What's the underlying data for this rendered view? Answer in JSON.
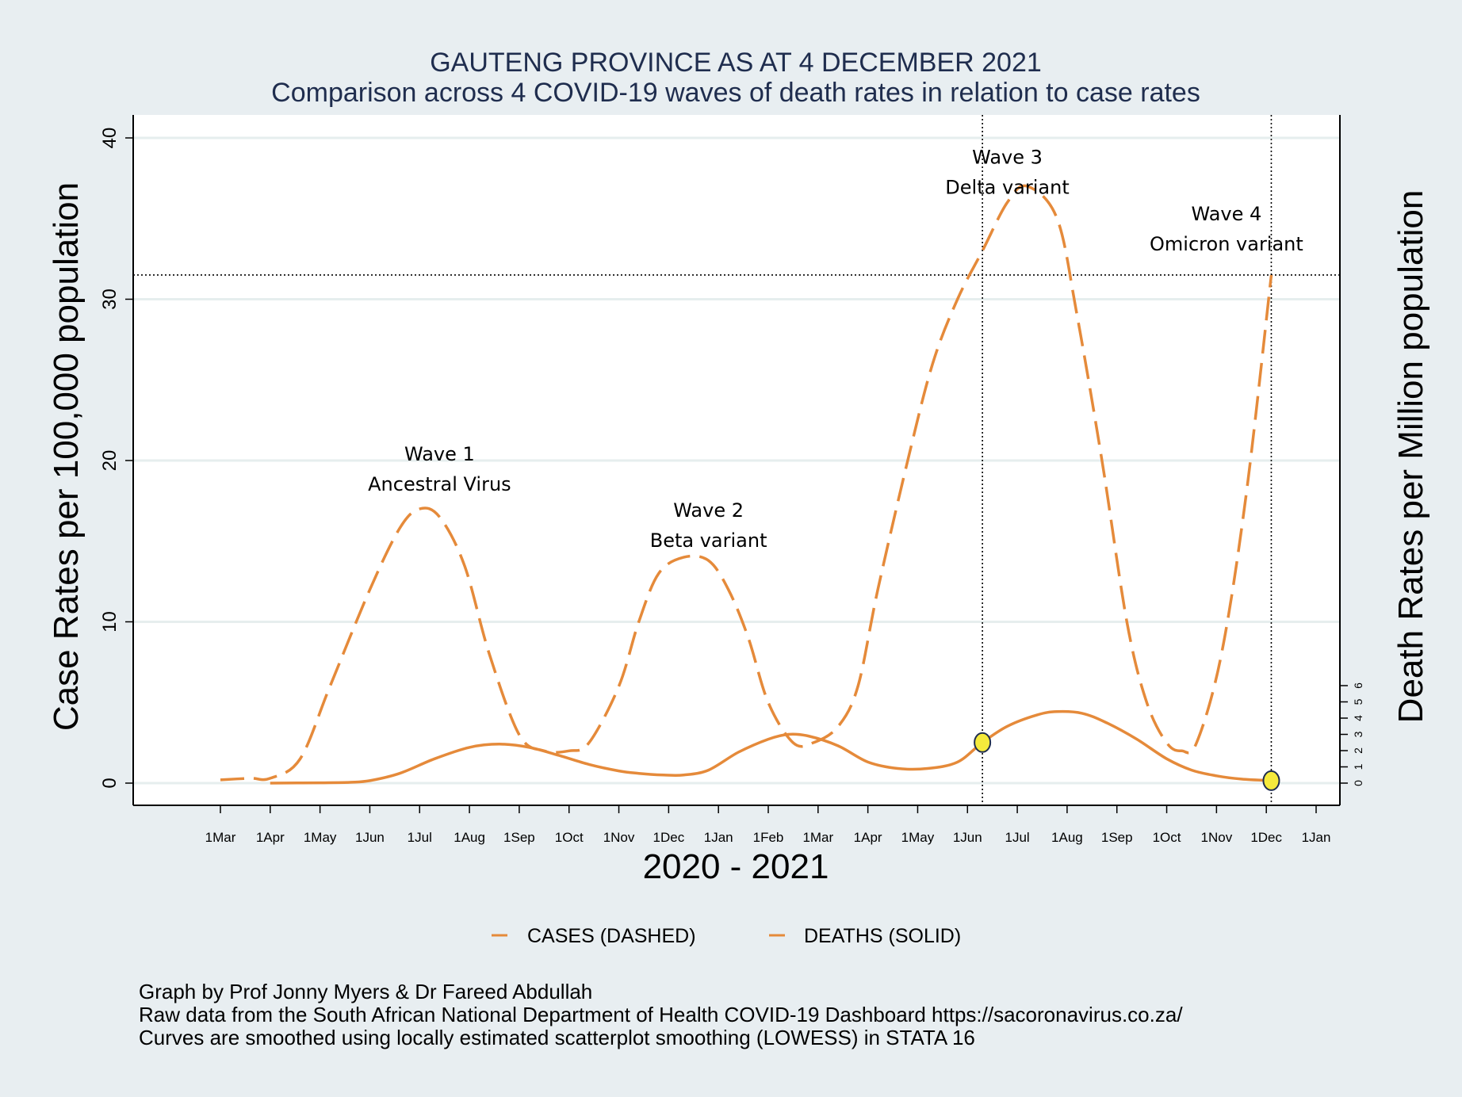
{
  "colors": {
    "background": "#e8eef1",
    "plot_background": "#ffffff",
    "gridline": "#e6eeee",
    "series": "#e58a3a",
    "marker_fill": "#f5ea3c",
    "title": "#1f2d4e"
  },
  "chart_data": {
    "type": "line",
    "title": "GAUTENG PROVINCE AS AT 4 DECEMBER 2021",
    "subtitle": "Comparison across 4 COVID-19 waves of death rates in relation to case rates",
    "xlabel": "2020 - 2021",
    "ylabel": "Case Rates per 100,000 population",
    "ylabel_right": "Death Rates per Million population",
    "x_ticks": [
      "1Mar",
      "1Apr",
      "1May",
      "1Jun",
      "1Jul",
      "1Aug",
      "1Sep",
      "1Oct",
      "1Nov",
      "1Dec",
      "1Jan",
      "1Feb",
      "1Mar",
      "1Apr",
      "1May",
      "1Jun",
      "1Jul",
      "1Aug",
      "1Sep",
      "1Oct",
      "1Nov",
      "1Dec",
      "1Jan"
    ],
    "x_range": [
      0,
      22
    ],
    "y_left": {
      "range": [
        0,
        40
      ],
      "ticks": [
        0,
        10,
        20,
        30,
        40
      ]
    },
    "y_right": {
      "range": [
        0,
        6
      ],
      "ticks": [
        0,
        1,
        2,
        3,
        4,
        5,
        6
      ]
    },
    "grid": true,
    "reference_lines": {
      "horizontal_case_rate": 31.5,
      "vertical_x": [
        15.3,
        21.1
      ]
    },
    "series": [
      {
        "name": "CASES (DASHED)",
        "style": "dashed",
        "axis": "left",
        "x": [
          0,
          0.6,
          1.0,
          1.6,
          2.2,
          3.0,
          3.6,
          4.0,
          4.4,
          4.9,
          5.4,
          6.0,
          6.5,
          7.0,
          7.4,
          8.0,
          8.4,
          8.8,
          9.3,
          9.8,
          10.2,
          10.6,
          11.0,
          11.5,
          11.9,
          12.4,
          12.8,
          13.2,
          13.8,
          14.3,
          14.8,
          15.3,
          15.8,
          16.2,
          16.8,
          17.2,
          17.7,
          18.2,
          18.6,
          19.0,
          19.3,
          19.6,
          20.1,
          20.6,
          21.1
        ],
        "y": [
          0.2,
          0.3,
          0.3,
          1.5,
          6,
          12,
          15.8,
          17,
          16.5,
          13.5,
          8,
          3,
          2,
          2,
          2.5,
          6,
          10,
          13,
          14,
          13.8,
          12,
          9,
          5,
          2.5,
          2.5,
          3.5,
          6,
          12,
          20,
          26,
          30,
          33,
          36,
          37,
          35,
          29,
          20,
          10,
          5,
          2.5,
          2,
          2.5,
          8,
          18,
          31.5
        ]
      },
      {
        "name": "DEATHS (SOLID)",
        "style": "solid",
        "axis": "right",
        "x": [
          1.0,
          2.0,
          2.6,
          3.0,
          3.6,
          4.3,
          5.0,
          5.6,
          6.2,
          6.8,
          7.4,
          8.0,
          8.4,
          8.9,
          9.3,
          9.8,
          10.4,
          11.0,
          11.4,
          11.8,
          12.4,
          13.0,
          13.6,
          14.2,
          14.8,
          15.3,
          15.8,
          16.4,
          16.8,
          17.3,
          17.8,
          18.4,
          19.0,
          19.5,
          20.0,
          20.5,
          21.1
        ],
        "y": [
          0,
          0.02,
          0.05,
          0.15,
          0.6,
          1.5,
          2.2,
          2.4,
          2.2,
          1.7,
          1.15,
          0.75,
          0.6,
          0.5,
          0.5,
          0.8,
          1.9,
          2.7,
          3.0,
          2.9,
          2.3,
          1.3,
          0.9,
          0.9,
          1.3,
          2.5,
          3.5,
          4.2,
          4.4,
          4.3,
          3.7,
          2.7,
          1.5,
          0.8,
          0.45,
          0.25,
          0.15
        ]
      }
    ],
    "markers": [
      {
        "x": 15.3,
        "y": 2.5,
        "axis": "right"
      },
      {
        "x": 21.1,
        "y": 0.15,
        "axis": "right"
      }
    ],
    "annotations": [
      {
        "lines": [
          "Wave 1",
          "Ancestral Virus"
        ],
        "x": 4.4,
        "y": 20
      },
      {
        "lines": [
          "Wave 2",
          "Beta  variant"
        ],
        "x": 9.8,
        "y": 16.5
      },
      {
        "lines": [
          "Wave 3",
          "Delta  variant"
        ],
        "x": 15.8,
        "y": 38.4
      },
      {
        "lines": [
          "Wave 4",
          "Omicron  variant"
        ],
        "x": 20.2,
        "y": 34.9
      }
    ],
    "legend": {
      "position": "bottom",
      "items": [
        "CASES (DASHED)",
        "DEATHS (SOLID)"
      ]
    }
  },
  "footnotes": [
    "Graph by Prof Jonny Myers & Dr Fareed Abdullah",
    "Raw data from the South African National Department of Health COVID-19 Dashboard  https://sacoronavirus.co.za/",
    "Curves are smoothed using locally estimated scatterplot smoothing (LOWESS) in STATA 16"
  ]
}
